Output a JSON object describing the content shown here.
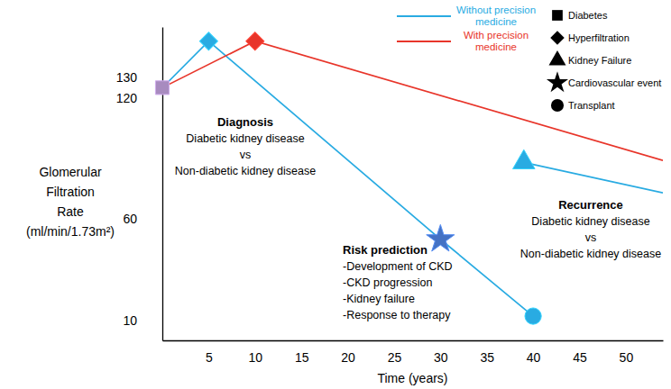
{
  "chart_data": {
    "type": "line",
    "xlabel": "Time (years)",
    "ylabel": "Glomerular Filtration Rate (ml/min/1.73m²)",
    "xlim": [
      0,
      54
    ],
    "ylim": [
      0,
      155
    ],
    "xticks": [
      5,
      10,
      15,
      20,
      25,
      30,
      35,
      40,
      45,
      50
    ],
    "yticks": [
      10,
      60,
      120,
      130
    ],
    "grid": false,
    "legend": "top right",
    "series": [
      {
        "name": "Without precision medicine",
        "type": "line",
        "color": "#29abe2",
        "x": [
          0,
          5,
          30,
          40,
          null,
          39,
          54
        ],
        "values": [
          125,
          148,
          50,
          12,
          null,
          88,
          73
        ]
      },
      {
        "name": "With precision medicine",
        "type": "line",
        "color": "#e8352a",
        "x": [
          0,
          10,
          54
        ],
        "values": [
          125,
          148,
          89
        ]
      },
      {
        "name": "Diabetes",
        "type": "scatter",
        "marker": "square",
        "color": "#a88bbf",
        "x": [
          0
        ],
        "values": [
          125
        ]
      },
      {
        "name": "Hyperfiltration",
        "type": "scatter",
        "marker": "diamond",
        "colors": [
          "#29abe2",
          "#e8352a"
        ],
        "x": [
          5,
          10
        ],
        "values": [
          148,
          148
        ]
      },
      {
        "name": "Kidney Failure",
        "type": "scatter",
        "marker": "triangle",
        "color": "#29abe2",
        "x": [
          39
        ],
        "values": [
          88
        ]
      },
      {
        "name": "Cardiovascular event",
        "type": "scatter",
        "marker": "star",
        "color": "#4472c4",
        "x": [
          30
        ],
        "values": [
          50
        ]
      },
      {
        "name": "Transplant",
        "type": "scatter",
        "marker": "circle",
        "color": "#29abe2",
        "x": [
          40
        ],
        "values": [
          12
        ]
      }
    ],
    "annotations": [
      {
        "title": "Diagnosis",
        "lines": [
          "Diabetic kidney disease",
          "vs",
          "Non-diabetic kidney disease"
        ]
      },
      {
        "title": "Risk prediction",
        "lines": [
          "-Development of CKD",
          "-CKD progression",
          "-Kidney failure",
          "-Response to therapy"
        ]
      },
      {
        "title": "Recurrence",
        "lines": [
          "Diabetic kidney disease",
          "vs",
          "Non-diabetic kidney disease"
        ]
      }
    ]
  }
}
